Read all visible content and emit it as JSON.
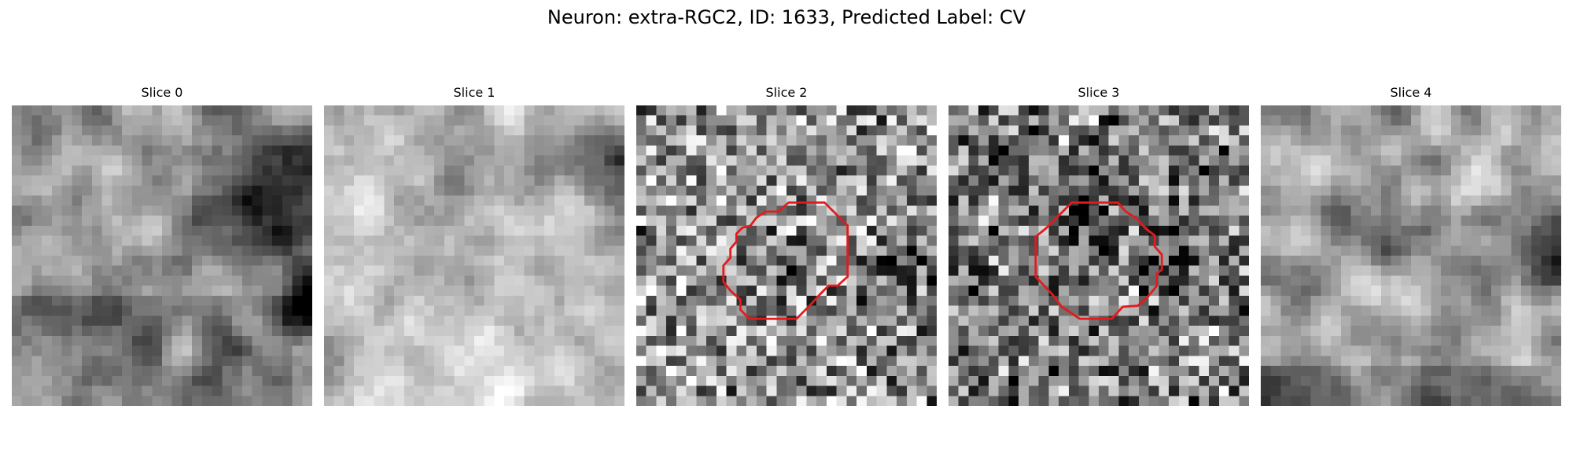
{
  "figure": {
    "title": "Neuron: extra-RGC2, ID: 1633, Predicted Label: CV"
  },
  "colors": {
    "contour": "#e41a1c",
    "colormap": "grayscale"
  },
  "image_grid_size": 30,
  "slices": [
    {
      "title": "Slice 0",
      "contour": false,
      "mean_level": 0.58,
      "texture": "smooth"
    },
    {
      "title": "Slice 1",
      "contour": false,
      "mean_level": 0.76,
      "texture": "smooth"
    },
    {
      "title": "Slice 2",
      "contour": true,
      "mean_level": 0.58,
      "texture": "noisy"
    },
    {
      "title": "Slice 3",
      "contour": true,
      "mean_level": 0.48,
      "texture": "noisy"
    },
    {
      "title": "Slice 4",
      "contour": false,
      "mean_level": 0.62,
      "texture": "smooth"
    }
  ]
}
